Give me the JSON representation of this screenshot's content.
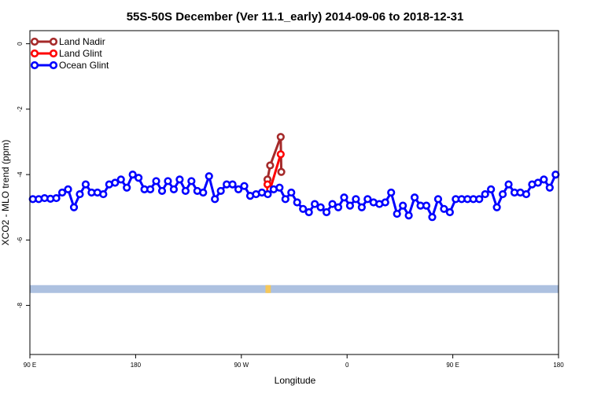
{
  "chart_data": {
    "type": "line",
    "title": "55S-50S December (Ver 11.1_early)   2014-09-06 to 2018-12-31",
    "xlabel": "Longitude",
    "ylabel": "XCO2 - MLO trend (ppm)",
    "xlim": [
      90,
      450
    ],
    "ylim": [
      -9.5,
      0.4
    ],
    "x_ticks": [
      {
        "value": 90,
        "label": "90 E"
      },
      {
        "value": 162,
        "label": "180"
      },
      {
        "value": 234,
        "label": "90 W"
      },
      {
        "value": 306,
        "label": "0"
      },
      {
        "value": 378,
        "label": "90 E"
      },
      {
        "value": 450,
        "label": "180"
      }
    ],
    "y_ticks": [
      {
        "value": 0,
        "label": "0"
      },
      {
        "value": -2,
        "label": "-2"
      },
      {
        "value": -4,
        "label": "-4"
      },
      {
        "value": -6,
        "label": "-6"
      },
      {
        "value": -8,
        "label": "-8"
      }
    ],
    "grid": false,
    "legend_position": "top-left",
    "series": [
      {
        "name": "Land Nadir",
        "color": "#a52a2a",
        "x": [
          251.8,
          253.6,
          260.8,
          261.2
        ],
        "y": [
          -4.15,
          -3.72,
          -2.85,
          -3.92
        ]
      },
      {
        "name": "Land Glint",
        "color": "#ff0000",
        "x": [
          251.8,
          253.6,
          260.8
        ],
        "y": [
          -4.3,
          -4.45,
          -3.38
        ]
      },
      {
        "name": "Ocean Glint",
        "color": "#0000ff",
        "x": [
          92,
          96,
          100,
          104,
          108,
          112,
          116,
          120,
          124,
          128,
          132,
          136,
          140,
          144,
          148,
          152,
          156,
          160,
          164,
          168,
          172,
          176,
          180,
          184,
          188,
          192,
          196,
          200,
          204,
          208,
          212,
          216,
          220,
          224,
          228,
          232,
          236,
          240,
          244,
          248,
          252,
          256,
          260,
          264,
          268,
          272,
          276,
          280,
          284,
          288,
          292,
          296,
          300,
          304,
          308,
          312,
          316,
          320,
          324,
          328,
          332,
          336,
          340,
          344,
          348,
          352,
          356,
          360,
          364,
          368,
          372,
          376,
          380,
          384,
          388,
          392,
          396,
          400,
          404,
          408,
          412,
          416,
          420,
          424,
          428,
          432,
          436,
          440,
          444,
          448
        ],
        "y": [
          -4.75,
          -4.75,
          -4.72,
          -4.74,
          -4.72,
          -4.55,
          -4.45,
          -5.0,
          -4.6,
          -4.3,
          -4.55,
          -4.55,
          -4.6,
          -4.3,
          -4.25,
          -4.15,
          -4.4,
          -4.0,
          -4.1,
          -4.45,
          -4.45,
          -4.2,
          -4.5,
          -4.2,
          -4.45,
          -4.15,
          -4.5,
          -4.2,
          -4.5,
          -4.55,
          -4.05,
          -4.75,
          -4.5,
          -4.3,
          -4.3,
          -4.45,
          -4.35,
          -4.65,
          -4.6,
          -4.55,
          -4.6,
          -4.45,
          -4.4,
          -4.75,
          -4.55,
          -4.85,
          -5.05,
          -5.15,
          -4.9,
          -5.0,
          -5.15,
          -4.9,
          -5.0,
          -4.7,
          -4.95,
          -4.75,
          -5.0,
          -4.75,
          -4.85,
          -4.9,
          -4.85,
          -4.55,
          -5.2,
          -4.95,
          -5.25,
          -4.7,
          -4.95,
          -4.95,
          -5.3,
          -4.75,
          -5.05,
          -5.15,
          -4.75,
          -4.75,
          -4.75,
          -4.75,
          -4.75,
          -4.6,
          -4.45,
          -5.0,
          -4.6,
          -4.3,
          -4.55,
          -4.55,
          -4.6,
          -4.3,
          -4.25,
          -4.15,
          -4.4,
          -4.0
        ]
      }
    ],
    "coverage_band": {
      "y": -7.5,
      "color": "#adc1e0",
      "marker_color": "#f5c75a",
      "marker_x": [
        251.5,
        253
      ]
    }
  }
}
